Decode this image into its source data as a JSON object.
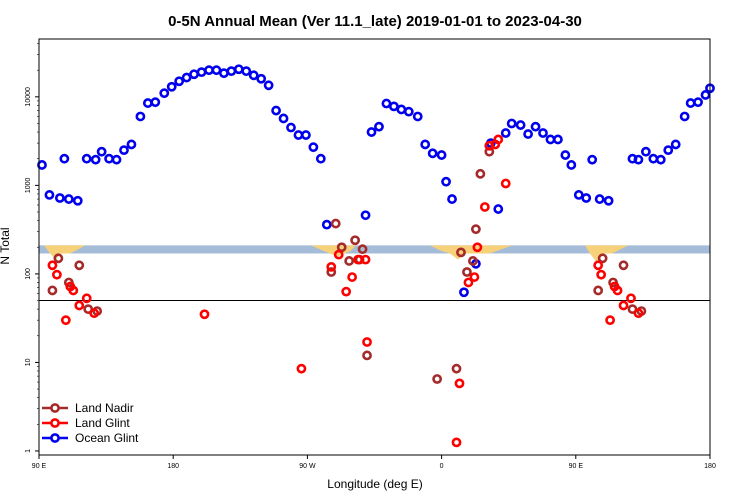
{
  "chart_data": {
    "type": "scatter",
    "title": "0-5N Annual Mean (Ver 11.1_late)   2019-01-01 to 2023-04-30",
    "xlabel": "Longitude (deg E)",
    "ylabel": "N Total",
    "x_ticks": [
      {
        "value": 90,
        "label": "90 E"
      },
      {
        "value": 180,
        "label": "180"
      },
      {
        "value": 270,
        "label": "90 W"
      },
      {
        "value": 360,
        "label": "0"
      },
      {
        "value": 450,
        "label": "90 E"
      },
      {
        "value": 540,
        "label": "180"
      }
    ],
    "y_ticks": [
      {
        "value": 1,
        "label": "1"
      },
      {
        "value": 10,
        "label": "10"
      },
      {
        "value": 100,
        "label": "100"
      },
      {
        "value": 1000,
        "label": "1000"
      },
      {
        "value": 10000,
        "label": "10000"
      }
    ],
    "xlim": [
      90,
      540
    ],
    "ylim_log": [
      0.9,
      45000
    ],
    "y_scale": "log",
    "reference_line": 50,
    "land_band": [
      170,
      210
    ],
    "legend_position": "bottom-left",
    "colors": {
      "land_nadir": "#a52a2a",
      "land_glint": "#ff0000",
      "ocean_glint": "#0000ee",
      "band": "#a5bcd8",
      "land": "#f7d07a"
    },
    "series": [
      {
        "name": "Land Nadir",
        "color": "#a52a2a",
        "points": [
          [
            99,
            65
          ],
          [
            103,
            150
          ],
          [
            110,
            80
          ],
          [
            117,
            125
          ],
          [
            123,
            40
          ],
          [
            129,
            38
          ],
          [
            286,
            105
          ],
          [
            289,
            370
          ],
          [
            293,
            200
          ],
          [
            298,
            140
          ],
          [
            302,
            240
          ],
          [
            305,
            145
          ],
          [
            307,
            190
          ],
          [
            310,
            12
          ],
          [
            357,
            6.5
          ],
          [
            370,
            8.5
          ],
          [
            373,
            175
          ],
          [
            377,
            105
          ],
          [
            381,
            140
          ],
          [
            383,
            320
          ],
          [
            386,
            1350
          ],
          [
            392,
            2400
          ],
          [
            465,
            65
          ],
          [
            468,
            150
          ],
          [
            475,
            80
          ],
          [
            482,
            125
          ],
          [
            488,
            40
          ],
          [
            494,
            38
          ]
        ]
      },
      {
        "name": "Land Glint",
        "color": "#ff0000",
        "points": [
          [
            99,
            125
          ],
          [
            102,
            98
          ],
          [
            108,
            30
          ],
          [
            111,
            72
          ],
          [
            113,
            65
          ],
          [
            117,
            44
          ],
          [
            122,
            53
          ],
          [
            127,
            36
          ],
          [
            201,
            35
          ],
          [
            266,
            8.5
          ],
          [
            286,
            120
          ],
          [
            291,
            165
          ],
          [
            296,
            63
          ],
          [
            300,
            92
          ],
          [
            304,
            145
          ],
          [
            309,
            145
          ],
          [
            310,
            17
          ],
          [
            370,
            1.25
          ],
          [
            372,
            5.8
          ],
          [
            378,
            80
          ],
          [
            382,
            92
          ],
          [
            384,
            200
          ],
          [
            389,
            570
          ],
          [
            392,
            2800
          ],
          [
            396,
            2900
          ],
          [
            398,
            3300
          ],
          [
            403,
            1050
          ],
          [
            465,
            125
          ],
          [
            467,
            98
          ],
          [
            473,
            30
          ],
          [
            476,
            72
          ],
          [
            478,
            65
          ],
          [
            482,
            44
          ],
          [
            487,
            53
          ],
          [
            492,
            36
          ]
        ]
      },
      {
        "name": "Ocean Glint",
        "color": "#0000ee",
        "points": [
          [
            92,
            1700
          ],
          [
            97,
            780
          ],
          [
            104,
            720
          ],
          [
            110,
            700
          ],
          [
            116,
            670
          ],
          [
            107,
            2000
          ],
          [
            122,
            2000
          ],
          [
            128,
            1950
          ],
          [
            132,
            2400
          ],
          [
            137,
            2000
          ],
          [
            142,
            1950
          ],
          [
            147,
            2500
          ],
          [
            152,
            2900
          ],
          [
            158,
            6000
          ],
          [
            163,
            8500
          ],
          [
            168,
            8700
          ],
          [
            174,
            11000
          ],
          [
            179,
            13000
          ],
          [
            184,
            15000
          ],
          [
            189,
            16500
          ],
          [
            194,
            18000
          ],
          [
            199,
            19000
          ],
          [
            204,
            20000
          ],
          [
            209,
            20000
          ],
          [
            214,
            18500
          ],
          [
            219,
            19500
          ],
          [
            224,
            20500
          ],
          [
            229,
            19500
          ],
          [
            234,
            17500
          ],
          [
            239,
            16000
          ],
          [
            244,
            13500
          ],
          [
            249,
            7000
          ],
          [
            254,
            5700
          ],
          [
            259,
            4500
          ],
          [
            264,
            3700
          ],
          [
            269,
            3700
          ],
          [
            274,
            2700
          ],
          [
            279,
            2000
          ],
          [
            283,
            360
          ],
          [
            309,
            460
          ],
          [
            313,
            4000
          ],
          [
            318,
            4600
          ],
          [
            323,
            8400
          ],
          [
            328,
            7800
          ],
          [
            333,
            7200
          ],
          [
            338,
            6800
          ],
          [
            344,
            6000
          ],
          [
            349,
            2900
          ],
          [
            354,
            2300
          ],
          [
            360,
            2200
          ],
          [
            363,
            1100
          ],
          [
            367,
            700
          ],
          [
            375,
            62
          ],
          [
            383,
            130
          ],
          [
            393,
            3000
          ],
          [
            398,
            540
          ],
          [
            403,
            3900
          ],
          [
            407,
            5000
          ],
          [
            413,
            4800
          ],
          [
            418,
            3800
          ],
          [
            423,
            4600
          ],
          [
            428,
            3900
          ],
          [
            433,
            3300
          ],
          [
            438,
            3300
          ],
          [
            443,
            2200
          ],
          [
            447,
            1700
          ],
          [
            452,
            780
          ],
          [
            457,
            720
          ],
          [
            461,
            1950
          ],
          [
            466,
            700
          ],
          [
            472,
            670
          ],
          [
            488,
            2000
          ],
          [
            492,
            1950
          ],
          [
            497,
            2400
          ],
          [
            502,
            2000
          ],
          [
            507,
            1950
          ],
          [
            512,
            2500
          ],
          [
            517,
            2900
          ],
          [
            523,
            6000
          ],
          [
            527,
            8500
          ],
          [
            532,
            8700
          ],
          [
            537,
            10500
          ],
          [
            540,
            12500
          ]
        ]
      }
    ]
  }
}
